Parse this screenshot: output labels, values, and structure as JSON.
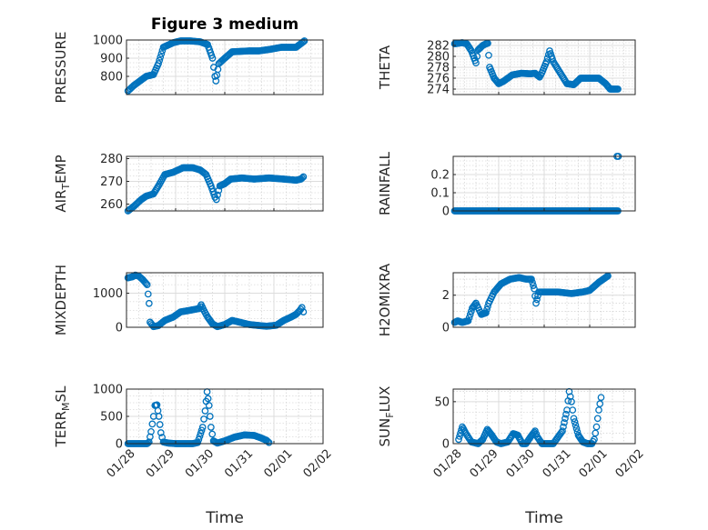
{
  "figure_title": "Figure 3 medium",
  "colors": {
    "marker": "#0072bd",
    "axis": "#262626",
    "grid": "#dcdcdc"
  },
  "chart_data": [
    {
      "type": "scatter",
      "ylabel": "PRESSURE",
      "title": "Figure 3 medium",
      "xlim": [
        0,
        4
      ],
      "ylim": [
        700,
        1000
      ],
      "yticks": [
        800,
        900,
        1000
      ],
      "xtick_labels": [],
      "segments": [
        [
          0.03,
          720
        ],
        [
          0.15,
          750
        ],
        [
          0.3,
          780
        ],
        [
          0.4,
          800
        ],
        [
          0.55,
          810
        ],
        [
          0.65,
          870
        ],
        [
          0.75,
          960
        ],
        [
          0.95,
          985
        ],
        [
          1.1,
          995
        ],
        [
          1.3,
          995
        ],
        [
          1.5,
          990
        ],
        [
          1.65,
          975
        ],
        [
          1.75,
          900
        ],
        [
          1.8,
          800
        ],
        [
          1.82,
          775
        ],
        [
          1.88,
          870
        ],
        [
          2.0,
          900
        ],
        [
          2.15,
          935
        ],
        [
          2.5,
          940
        ],
        [
          2.7,
          940
        ],
        [
          2.95,
          950
        ],
        [
          3.15,
          960
        ],
        [
          3.45,
          960
        ],
        [
          3.55,
          980
        ],
        [
          3.62,
          995
        ]
      ]
    },
    {
      "type": "scatter",
      "ylabel": "THETA",
      "xlim": [
        0,
        4
      ],
      "ylim": [
        273,
        283
      ],
      "yticks": [
        274,
        276,
        278,
        280,
        282
      ],
      "xtick_labels": [],
      "segments": [
        [
          0.03,
          282.3
        ],
        [
          0.2,
          282.5
        ],
        [
          0.3,
          282.3
        ],
        [
          0.4,
          281
        ],
        [
          0.5,
          278.8
        ],
        [
          0.55,
          281.2
        ],
        [
          0.65,
          282
        ],
        [
          0.72,
          282.3
        ],
        [
          0.76,
          282.4
        ],
        [
          0.8,
          278
        ],
        [
          0.9,
          276
        ],
        [
          1.0,
          275
        ],
        [
          1.1,
          275.4
        ],
        [
          1.3,
          276.6
        ],
        [
          1.5,
          276.9
        ],
        [
          1.7,
          276.8
        ],
        [
          1.8,
          276.9
        ],
        [
          1.9,
          276.2
        ],
        [
          1.95,
          277
        ],
        [
          2.05,
          279
        ],
        [
          2.12,
          281
        ],
        [
          2.2,
          279
        ],
        [
          2.35,
          277
        ],
        [
          2.5,
          275
        ],
        [
          2.65,
          274.8
        ],
        [
          2.8,
          276
        ],
        [
          3.0,
          276
        ],
        [
          3.2,
          276
        ],
        [
          3.35,
          275
        ],
        [
          3.45,
          274
        ],
        [
          3.55,
          274
        ],
        [
          3.62,
          274
        ]
      ]
    },
    {
      "type": "scatter",
      "ylabel": "AIR_TEMP",
      "xlim": [
        0,
        4
      ],
      "ylim": [
        257,
        281
      ],
      "yticks": [
        260,
        270,
        280
      ],
      "xtick_labels": [],
      "segments": [
        [
          0.03,
          257
        ],
        [
          0.15,
          259
        ],
        [
          0.3,
          262
        ],
        [
          0.4,
          263.5
        ],
        [
          0.55,
          264.5
        ],
        [
          0.65,
          268
        ],
        [
          0.78,
          273
        ],
        [
          0.95,
          274
        ],
        [
          1.15,
          276
        ],
        [
          1.35,
          276
        ],
        [
          1.5,
          275
        ],
        [
          1.62,
          273
        ],
        [
          1.72,
          268
        ],
        [
          1.8,
          263
        ],
        [
          1.83,
          262
        ],
        [
          1.9,
          268
        ],
        [
          2.0,
          269
        ],
        [
          2.12,
          271
        ],
        [
          2.35,
          271.5
        ],
        [
          2.6,
          271
        ],
        [
          2.9,
          271.5
        ],
        [
          3.2,
          271
        ],
        [
          3.45,
          270.5
        ],
        [
          3.55,
          271
        ],
        [
          3.6,
          272
        ]
      ]
    },
    {
      "type": "scatter",
      "ylabel": "RAINFALL",
      "xlim": [
        0,
        4
      ],
      "ylim": [
        0,
        0.3
      ],
      "yticks": [
        0,
        0.1,
        0.2
      ],
      "xtick_labels": [],
      "segments": [
        [
          0.03,
          0
        ],
        [
          3.62,
          0
        ]
      ],
      "extra_points": [
        [
          3.6,
          0.3
        ],
        [
          3.63,
          0.3
        ]
      ]
    },
    {
      "type": "scatter",
      "ylabel": "MIXDEPTH",
      "xlim": [
        0,
        4
      ],
      "ylim": [
        0,
        1600
      ],
      "yticks": [
        0,
        1000
      ],
      "xtick_labels": [],
      "segments": [
        [
          0.03,
          1450
        ],
        [
          0.12,
          1480
        ],
        [
          0.18,
          1530
        ],
        [
          0.25,
          1500
        ],
        [
          0.33,
          1400
        ],
        [
          0.42,
          1250
        ],
        [
          0.46,
          700
        ],
        [
          0.48,
          150
        ],
        [
          0.55,
          20
        ],
        [
          0.65,
          50
        ],
        [
          0.78,
          200
        ],
        [
          0.95,
          300
        ],
        [
          1.1,
          450
        ],
        [
          1.3,
          500
        ],
        [
          1.48,
          550
        ],
        [
          1.52,
          660
        ],
        [
          1.58,
          480
        ],
        [
          1.65,
          300
        ],
        [
          1.75,
          100
        ],
        [
          1.85,
          20
        ],
        [
          2.0,
          80
        ],
        [
          2.15,
          200
        ],
        [
          2.3,
          150
        ],
        [
          2.5,
          80
        ],
        [
          2.7,
          50
        ],
        [
          2.85,
          30
        ],
        [
          3.05,
          60
        ],
        [
          3.2,
          200
        ],
        [
          3.35,
          300
        ],
        [
          3.45,
          380
        ],
        [
          3.52,
          480
        ],
        [
          3.57,
          580
        ],
        [
          3.6,
          450
        ]
      ]
    },
    {
      "type": "scatter",
      "ylabel": "H2OMIXRA",
      "xlim": [
        0,
        4
      ],
      "ylim": [
        0,
        3.4
      ],
      "yticks": [
        0,
        2
      ],
      "xtick_labels": [],
      "segments": [
        [
          0.03,
          0.3
        ],
        [
          0.1,
          0.4
        ],
        [
          0.2,
          0.3
        ],
        [
          0.33,
          0.4
        ],
        [
          0.42,
          1.2
        ],
        [
          0.5,
          1.5
        ],
        [
          0.55,
          1.2
        ],
        [
          0.62,
          0.8
        ],
        [
          0.72,
          0.9
        ],
        [
          0.78,
          1.5
        ],
        [
          0.9,
          2.2
        ],
        [
          1.05,
          2.7
        ],
        [
          1.25,
          3.0
        ],
        [
          1.45,
          3.1
        ],
        [
          1.6,
          3.0
        ],
        [
          1.72,
          3.0
        ],
        [
          1.78,
          2.4
        ],
        [
          1.82,
          1.5
        ],
        [
          1.88,
          2.2
        ],
        [
          2.0,
          2.2
        ],
        [
          2.3,
          2.2
        ],
        [
          2.6,
          2.1
        ],
        [
          2.85,
          2.2
        ],
        [
          3.0,
          2.3
        ],
        [
          3.2,
          2.8
        ],
        [
          3.3,
          3.0
        ],
        [
          3.4,
          3.2
        ]
      ]
    },
    {
      "type": "scatter",
      "ylabel": "TERR_MSL",
      "xlim": [
        0,
        4
      ],
      "ylim": [
        0,
        1000
      ],
      "yticks": [
        0,
        500,
        1000
      ],
      "xtick_labels": [
        "01/28",
        "01/29",
        "01/30",
        "01/31",
        "02/01",
        "02/02"
      ],
      "xlabel": "Time",
      "segments": [
        [
          0.03,
          0
        ],
        [
          0.42,
          0
        ],
        [
          0.46,
          30
        ],
        [
          0.5,
          220
        ],
        [
          0.55,
          500
        ],
        [
          0.58,
          700
        ],
        [
          0.62,
          710
        ],
        [
          0.66,
          500
        ],
        [
          0.7,
          200
        ],
        [
          0.75,
          30
        ],
        [
          0.85,
          10
        ],
        [
          1.0,
          0
        ],
        [
          1.35,
          0
        ],
        [
          1.45,
          20
        ],
        [
          1.55,
          300
        ],
        [
          1.6,
          600
        ],
        [
          1.64,
          950
        ],
        [
          1.68,
          700
        ],
        [
          1.72,
          300
        ],
        [
          1.77,
          50
        ],
        [
          1.85,
          10
        ],
        [
          2.0,
          50
        ],
        [
          2.2,
          120
        ],
        [
          2.4,
          160
        ],
        [
          2.6,
          150
        ],
        [
          2.75,
          100
        ],
        [
          2.85,
          60
        ],
        [
          2.9,
          20
        ]
      ]
    },
    {
      "type": "scatter",
      "ylabel": "SUN_FLUX",
      "xlim": [
        0,
        4
      ],
      "ylim": [
        0,
        65
      ],
      "yticks": [
        0,
        50
      ],
      "xtick_labels": [
        "01/28",
        "01/29",
        "01/30",
        "01/31",
        "02/01",
        "02/02"
      ],
      "xlabel": "Time",
      "segments": [
        [
          0.12,
          5
        ],
        [
          0.2,
          20
        ],
        [
          0.28,
          12
        ],
        [
          0.4,
          2
        ],
        [
          0.55,
          0
        ],
        [
          0.65,
          5
        ],
        [
          0.75,
          17
        ],
        [
          0.85,
          10
        ],
        [
          0.95,
          2
        ],
        [
          1.05,
          0
        ],
        [
          1.2,
          2
        ],
        [
          1.32,
          12
        ],
        [
          1.42,
          10
        ],
        [
          1.52,
          0
        ],
        [
          1.6,
          0
        ],
        [
          1.7,
          8
        ],
        [
          1.8,
          15
        ],
        [
          1.85,
          8
        ],
        [
          1.95,
          0
        ],
        [
          2.2,
          0
        ],
        [
          2.4,
          15
        ],
        [
          2.5,
          40
        ],
        [
          2.55,
          62
        ],
        [
          2.6,
          50
        ],
        [
          2.65,
          30
        ],
        [
          2.75,
          10
        ],
        [
          2.85,
          2
        ],
        [
          2.95,
          0
        ],
        [
          3.05,
          0
        ],
        [
          3.1,
          5
        ],
        [
          3.15,
          20
        ],
        [
          3.2,
          40
        ],
        [
          3.25,
          55
        ]
      ]
    }
  ]
}
